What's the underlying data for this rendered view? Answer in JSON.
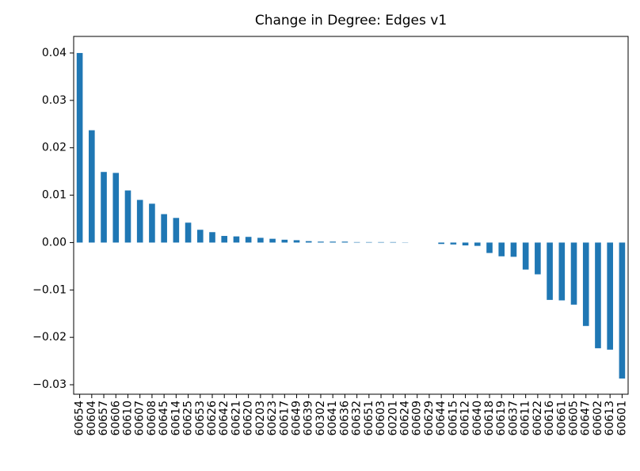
{
  "chart_data": {
    "type": "bar",
    "title": "Change in Degree: Edges v1",
    "categories": [
      "60654",
      "60604",
      "60657",
      "60606",
      "60610",
      "60607",
      "60608",
      "60645",
      "60614",
      "60625",
      "60653",
      "60626",
      "60642",
      "60621",
      "60620",
      "60203",
      "60623",
      "60617",
      "60649",
      "60639",
      "60302",
      "60641",
      "60636",
      "60632",
      "60651",
      "60603",
      "60201",
      "60624",
      "60609",
      "60629",
      "60644",
      "60615",
      "60612",
      "60640",
      "60618",
      "60619",
      "60637",
      "60611",
      "60622",
      "60616",
      "60661",
      "60605",
      "60647",
      "60602",
      "60613",
      "60601"
    ],
    "values": [
      0.04,
      0.0237,
      0.0149,
      0.0147,
      0.011,
      0.009,
      0.0082,
      0.006,
      0.0052,
      0.0042,
      0.0027,
      0.0022,
      0.0014,
      0.0013,
      0.0012,
      0.001,
      0.0008,
      0.0006,
      0.0005,
      0.0003,
      0.0002,
      0.0002,
      0.0002,
      0.0001,
      0.0001,
      0.0001,
      0.0001,
      5e-05,
      0,
      0,
      -0.0003,
      -0.0004,
      -0.0006,
      -0.0007,
      -0.0022,
      -0.0029,
      -0.003,
      -0.0057,
      -0.0067,
      -0.0121,
      -0.0122,
      -0.0131,
      -0.0176,
      -0.0223,
      -0.0226,
      -0.0287
    ],
    "color": "#1f77b4",
    "ylim": [
      -0.032,
      0.0435
    ],
    "yticks": [
      {
        "value": -0.03,
        "label": "−0.03"
      },
      {
        "value": -0.02,
        "label": "−0.02"
      },
      {
        "value": -0.01,
        "label": "−0.01"
      },
      {
        "value": 0,
        "label": "0.00"
      },
      0.01,
      0.02,
      0.03,
      0.04
    ],
    "grid": false
  }
}
